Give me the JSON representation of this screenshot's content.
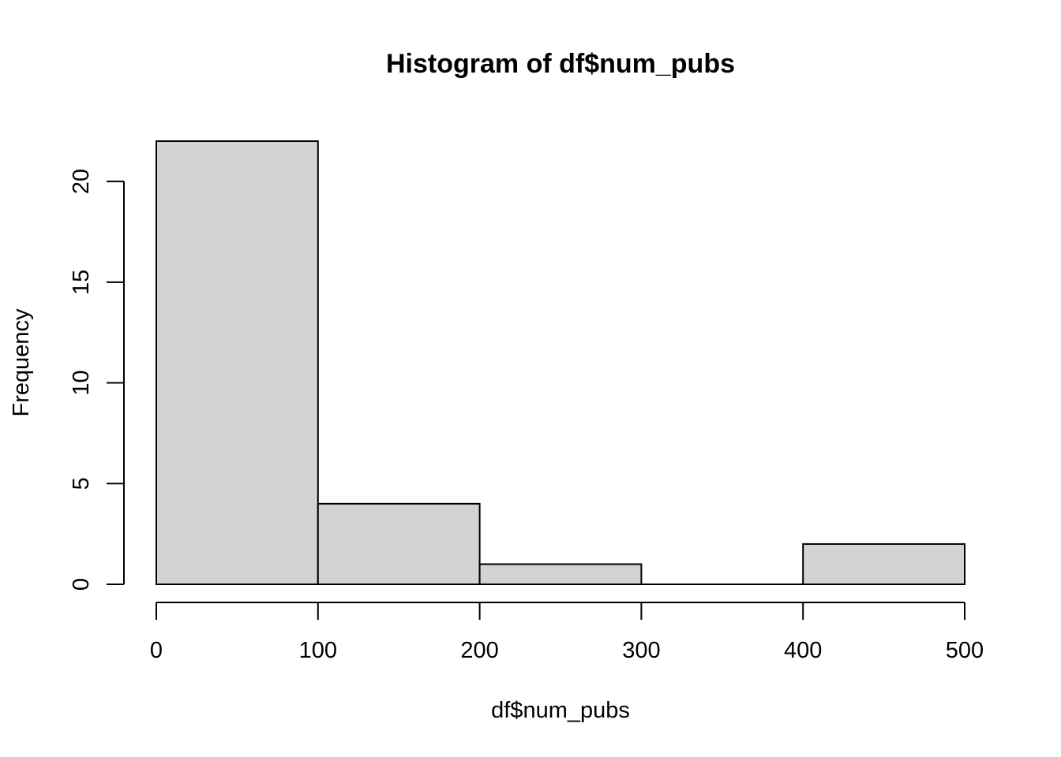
{
  "chart_data": {
    "type": "bar",
    "title": "Histogram of df$num_pubs",
    "xlabel": "df$num_pubs",
    "ylabel": "Frequency",
    "bins": [
      {
        "from": 0,
        "to": 100,
        "count": 22
      },
      {
        "from": 100,
        "to": 200,
        "count": 4
      },
      {
        "from": 200,
        "to": 300,
        "count": 1
      },
      {
        "from": 300,
        "to": 400,
        "count": 0
      },
      {
        "from": 400,
        "to": 500,
        "count": 2
      }
    ],
    "xlim": [
      0,
      500
    ],
    "ylim": [
      0,
      22
    ],
    "x_ticks": [
      0,
      100,
      200,
      300,
      400,
      500
    ],
    "y_ticks": [
      0,
      5,
      10,
      15,
      20
    ],
    "bar_color": "#d3d3d3",
    "grid": false
  }
}
